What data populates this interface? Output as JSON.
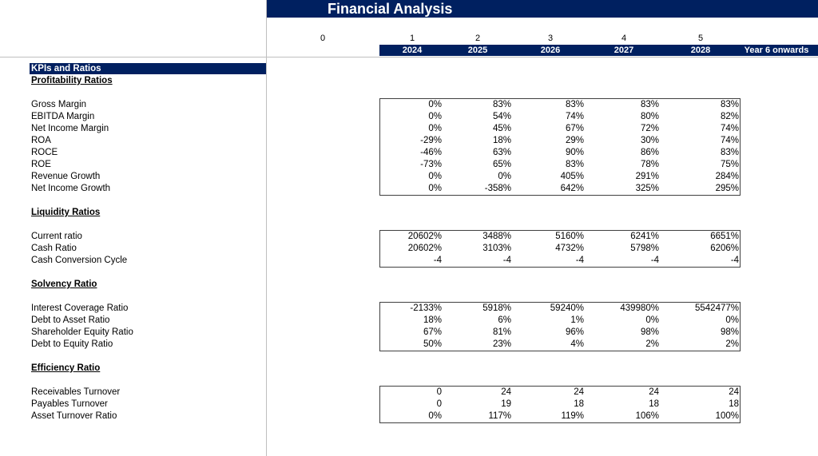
{
  "title": "Financial Analysis",
  "period_index": [
    "0",
    "1",
    "2",
    "3",
    "4",
    "5"
  ],
  "years": [
    "2024",
    "2025",
    "2026",
    "2027",
    "2028",
    "Year 6 onwards"
  ],
  "kpi_header": "KPIs and Ratios",
  "colors": {
    "header_bg": "#002060",
    "header_text": "#ffffff"
  },
  "sections": [
    {
      "title": "Profitability Ratios",
      "rows": [
        {
          "label": "Gross Margin",
          "values": [
            "0%",
            "83%",
            "83%",
            "83%",
            "83%"
          ]
        },
        {
          "label": "EBITDA Margin",
          "values": [
            "0%",
            "54%",
            "74%",
            "80%",
            "82%"
          ]
        },
        {
          "label": "Net Income Margin",
          "values": [
            "0%",
            "45%",
            "67%",
            "72%",
            "74%"
          ]
        },
        {
          "label": "ROA",
          "values": [
            "-29%",
            "18%",
            "29%",
            "30%",
            "74%"
          ]
        },
        {
          "label": "ROCE",
          "values": [
            "-46%",
            "63%",
            "90%",
            "86%",
            "83%"
          ]
        },
        {
          "label": "ROE",
          "values": [
            "-73%",
            "65%",
            "83%",
            "78%",
            "75%"
          ]
        },
        {
          "label": "Revenue Growth",
          "values": [
            "0%",
            "0%",
            "405%",
            "291%",
            "284%"
          ]
        },
        {
          "label": "Net Income Growth",
          "values": [
            "0%",
            "-358%",
            "642%",
            "325%",
            "295%"
          ]
        }
      ]
    },
    {
      "title": "Liquidity Ratios",
      "rows": [
        {
          "label": "Current ratio",
          "values": [
            "20602%",
            "3488%",
            "5160%",
            "6241%",
            "6651%"
          ]
        },
        {
          "label": "Cash Ratio",
          "values": [
            "20602%",
            "3103%",
            "4732%",
            "5798%",
            "6206%"
          ]
        },
        {
          "label": "Cash Conversion Cycle",
          "values": [
            "-4",
            "-4",
            "-4",
            "-4",
            "-4"
          ]
        }
      ]
    },
    {
      "title": "Solvency Ratio",
      "rows": [
        {
          "label": "Interest Coverage Ratio",
          "values": [
            "-2133%",
            "5918%",
            "59240%",
            "439980%",
            "5542477%"
          ]
        },
        {
          "label": "Debt to Asset Ratio",
          "values": [
            "18%",
            "6%",
            "1%",
            "0%",
            "0%"
          ]
        },
        {
          "label": "Shareholder Equity Ratio",
          "values": [
            "67%",
            "81%",
            "96%",
            "98%",
            "98%"
          ]
        },
        {
          "label": "Debt to Equity Ratio",
          "values": [
            "50%",
            "23%",
            "4%",
            "2%",
            "2%"
          ]
        }
      ]
    },
    {
      "title": "Efficiency Ratio",
      "rows": [
        {
          "label": "Receivables Turnover",
          "values": [
            "0",
            "24",
            "24",
            "24",
            "24"
          ]
        },
        {
          "label": "Payables Turnover",
          "values": [
            "0",
            "19",
            "18",
            "18",
            "18"
          ]
        },
        {
          "label": "Asset Turnover Ratio",
          "values": [
            "0%",
            "117%",
            "119%",
            "106%",
            "100%"
          ]
        }
      ]
    }
  ]
}
